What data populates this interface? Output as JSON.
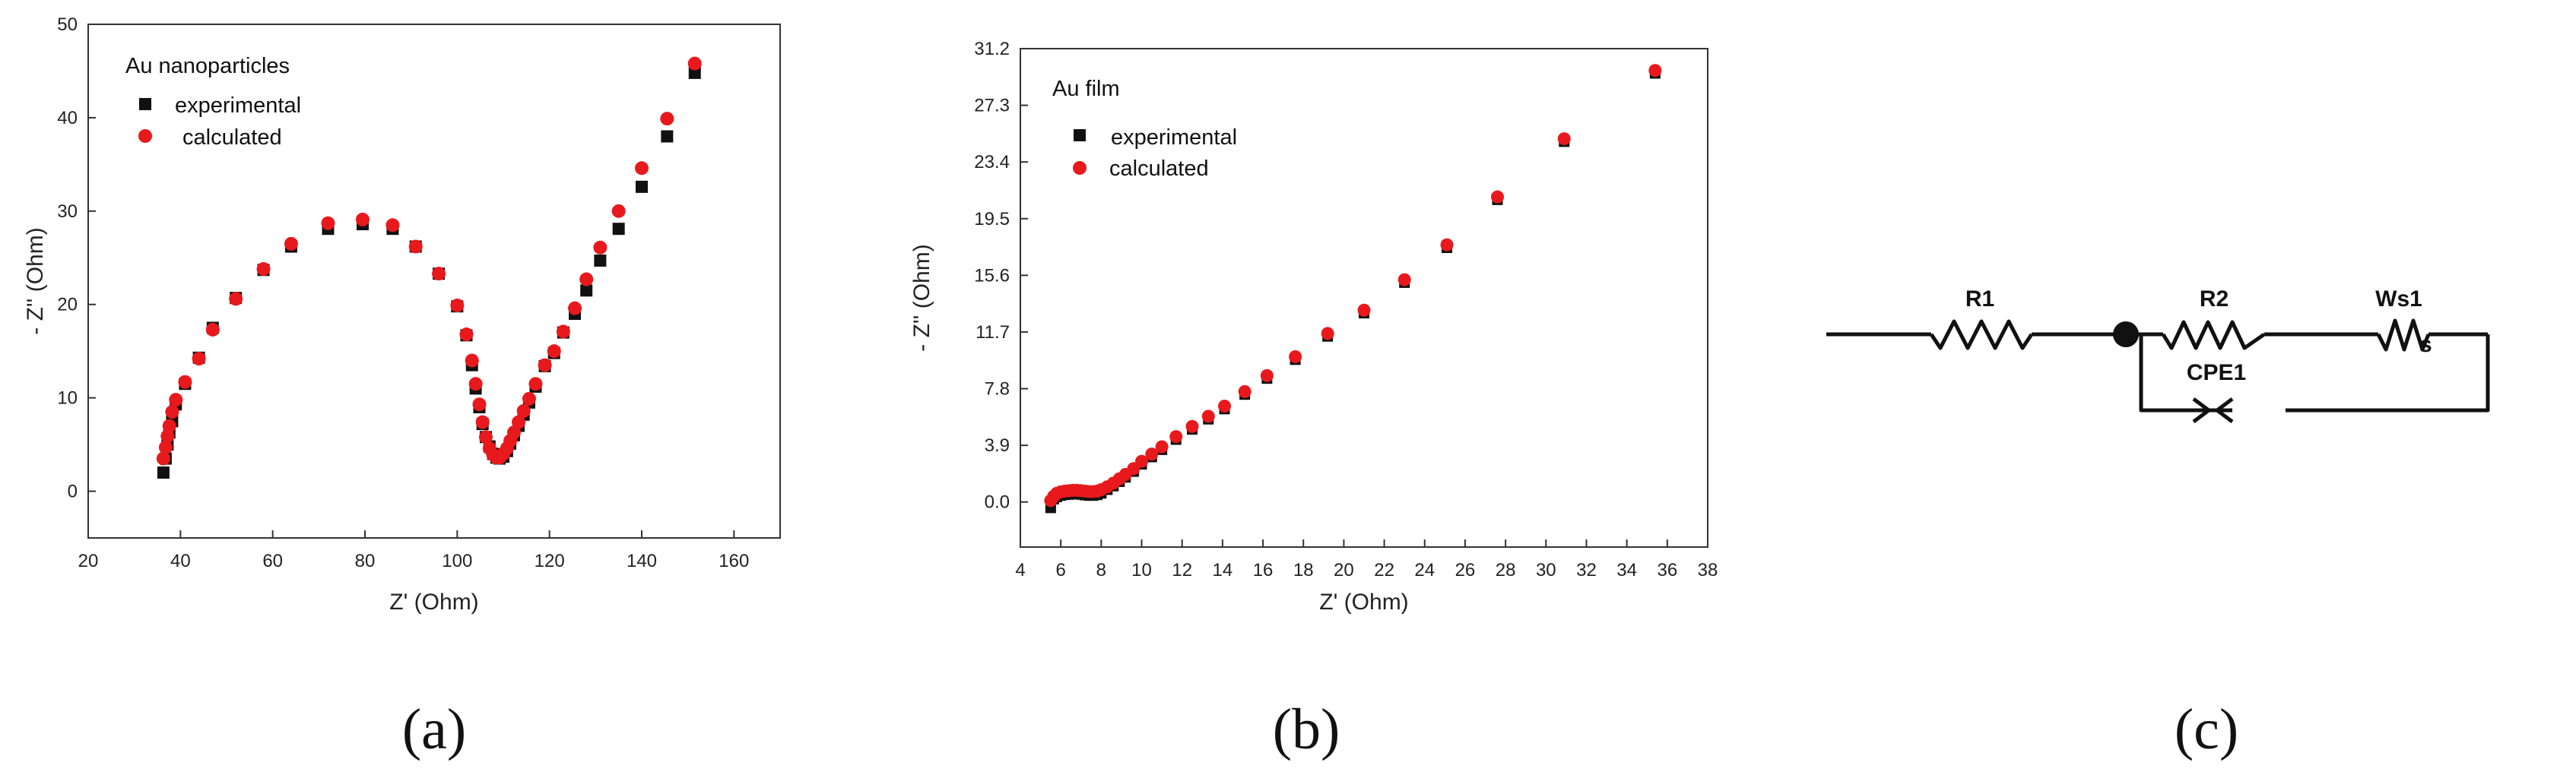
{
  "colors": {
    "experimental": "#111111",
    "calculated": "#e8191c"
  },
  "chart_data": [
    {
      "type": "scatter",
      "panel_label": "(a)",
      "title": "Au nanoparticles",
      "xlabel": "Z' (Ohm)",
      "ylabel": "- Z'' (Ohm)",
      "xlim": [
        20,
        170
      ],
      "ylim": [
        -5,
        50
      ],
      "xticks": [
        "20",
        "40",
        "60",
        "80",
        "100",
        "120",
        "140",
        "160"
      ],
      "yticks": [
        "0",
        "10",
        "20",
        "30",
        "40",
        "50"
      ],
      "legend": {
        "experimental": "experimental",
        "calculated": "calculated"
      },
      "series": [
        {
          "name": "experimental",
          "marker": "square",
          "x": [
            36.3,
            36.8,
            37.2,
            37.6,
            38.2,
            39,
            41,
            44,
            47,
            52,
            58,
            64,
            72,
            79.5,
            86,
            91,
            96,
            100,
            102,
            103.2,
            104,
            104.8,
            105.5,
            106.2,
            107,
            107.8,
            108.5,
            109.2,
            110,
            110.8,
            111.5,
            112.3,
            113.3,
            114.4,
            115.6,
            117,
            119,
            121,
            123,
            125.5,
            128,
            131,
            135,
            140,
            145.5,
            151.5
          ],
          "y": [
            2,
            3.5,
            5,
            6.3,
            7.5,
            9.3,
            11.5,
            14.3,
            17.5,
            20.7,
            23.7,
            26.2,
            28.1,
            28.6,
            28.1,
            26.2,
            23.3,
            19.8,
            16.7,
            13.5,
            11,
            9,
            7.2,
            5.8,
            4.8,
            4,
            3.6,
            3.5,
            3.7,
            4.3,
            5.1,
            6,
            7,
            8.2,
            9.5,
            11.2,
            13.4,
            14.8,
            17,
            19,
            21.5,
            24.7,
            28.1,
            32.6,
            38,
            44.8
          ]
        },
        {
          "name": "calculated",
          "marker": "circle",
          "x": [
            36.3,
            36.8,
            37.2,
            37.6,
            38.2,
            39,
            41,
            44,
            47,
            52,
            58,
            64,
            72,
            79.5,
            86,
            91,
            96,
            100,
            102,
            103.2,
            104,
            104.8,
            105.5,
            106.2,
            107,
            107.8,
            108.5,
            109.2,
            110,
            110.8,
            111.5,
            112.3,
            113.3,
            114.4,
            115.6,
            117,
            119,
            121,
            123,
            125.5,
            128,
            131,
            135,
            140,
            145.5,
            151.5
          ],
          "y": [
            3.5,
            4.7,
            5.9,
            7,
            8.5,
            9.8,
            11.7,
            14.2,
            17.3,
            20.6,
            23.8,
            26.5,
            28.7,
            29.1,
            28.5,
            26.2,
            23.3,
            19.9,
            16.8,
            14,
            11.5,
            9.3,
            7.4,
            5.8,
            4.6,
            3.9,
            3.6,
            3.6,
            4,
            4.6,
            5.4,
            6.3,
            7.4,
            8.6,
            9.9,
            11.5,
            13.5,
            15,
            17.1,
            19.6,
            22.7,
            26.1,
            30,
            34.6,
            39.9,
            45.8
          ]
        }
      ]
    },
    {
      "type": "scatter",
      "panel_label": "(b)",
      "title": "Au film",
      "xlabel": "Z' (Ohm)",
      "ylabel": "- Z'' (Ohm)",
      "xlim": [
        4,
        38
      ],
      "ylim": [
        -3.1,
        31.2
      ],
      "xticks": [
        "4",
        "6",
        "8",
        "10",
        "12",
        "14",
        "16",
        "18",
        "20",
        "22",
        "24",
        "26",
        "28",
        "30",
        "32",
        "34",
        "36",
        "38"
      ],
      "yticks": [
        "0.0",
        "3.9",
        "7.8",
        "11.7",
        "15.6",
        "19.5",
        "23.4",
        "27.3",
        "31.2"
      ],
      "legend": {
        "experimental": "experimental",
        "calculated": "calculated"
      },
      "series": [
        {
          "name": "experimental",
          "marker": "square",
          "x": [
            5.5,
            5.65,
            5.8,
            6.0,
            6.2,
            6.4,
            6.6,
            6.8,
            7.0,
            7.2,
            7.4,
            7.6,
            7.8,
            8.0,
            8.3,
            8.6,
            8.9,
            9.2,
            9.6,
            10.0,
            10.5,
            11.0,
            11.7,
            12.5,
            13.3,
            14.1,
            15.1,
            16.2,
            17.6,
            19.2,
            21.0,
            23.0,
            25.1,
            27.6,
            30.9,
            35.4
          ],
          "y": [
            -0.4,
            0.2,
            0.35,
            0.45,
            0.5,
            0.52,
            0.55,
            0.55,
            0.52,
            0.48,
            0.45,
            0.45,
            0.5,
            0.6,
            0.85,
            1.1,
            1.4,
            1.7,
            2.1,
            2.6,
            3.1,
            3.6,
            4.3,
            5.0,
            5.7,
            6.4,
            7.4,
            8.5,
            9.8,
            11.4,
            13.0,
            15.1,
            17.5,
            20.8,
            24.8,
            29.5
          ]
        },
        {
          "name": "calculated",
          "marker": "circle",
          "x": [
            5.5,
            5.65,
            5.8,
            6.0,
            6.2,
            6.4,
            6.6,
            6.8,
            7.0,
            7.2,
            7.4,
            7.6,
            7.8,
            8.0,
            8.3,
            8.6,
            8.9,
            9.2,
            9.6,
            10.0,
            10.5,
            11.0,
            11.7,
            12.5,
            13.3,
            14.1,
            15.1,
            16.2,
            17.6,
            19.2,
            21.0,
            23.0,
            25.1,
            27.6,
            30.9,
            35.4
          ],
          "y": [
            0.1,
            0.4,
            0.6,
            0.7,
            0.75,
            0.78,
            0.8,
            0.8,
            0.78,
            0.75,
            0.72,
            0.72,
            0.75,
            0.85,
            1.05,
            1.3,
            1.6,
            1.9,
            2.3,
            2.8,
            3.3,
            3.8,
            4.5,
            5.2,
            5.9,
            6.6,
            7.6,
            8.7,
            10.0,
            11.6,
            13.2,
            15.3,
            17.7,
            21.0,
            25.0,
            29.7
          ]
        }
      ]
    }
  ],
  "circuit": {
    "panel_label": "(c)",
    "labels": {
      "r1": "R1",
      "r2": "R2",
      "ws1": "Ws1",
      "ws_sub": "s",
      "cpe1": "CPE1"
    }
  }
}
